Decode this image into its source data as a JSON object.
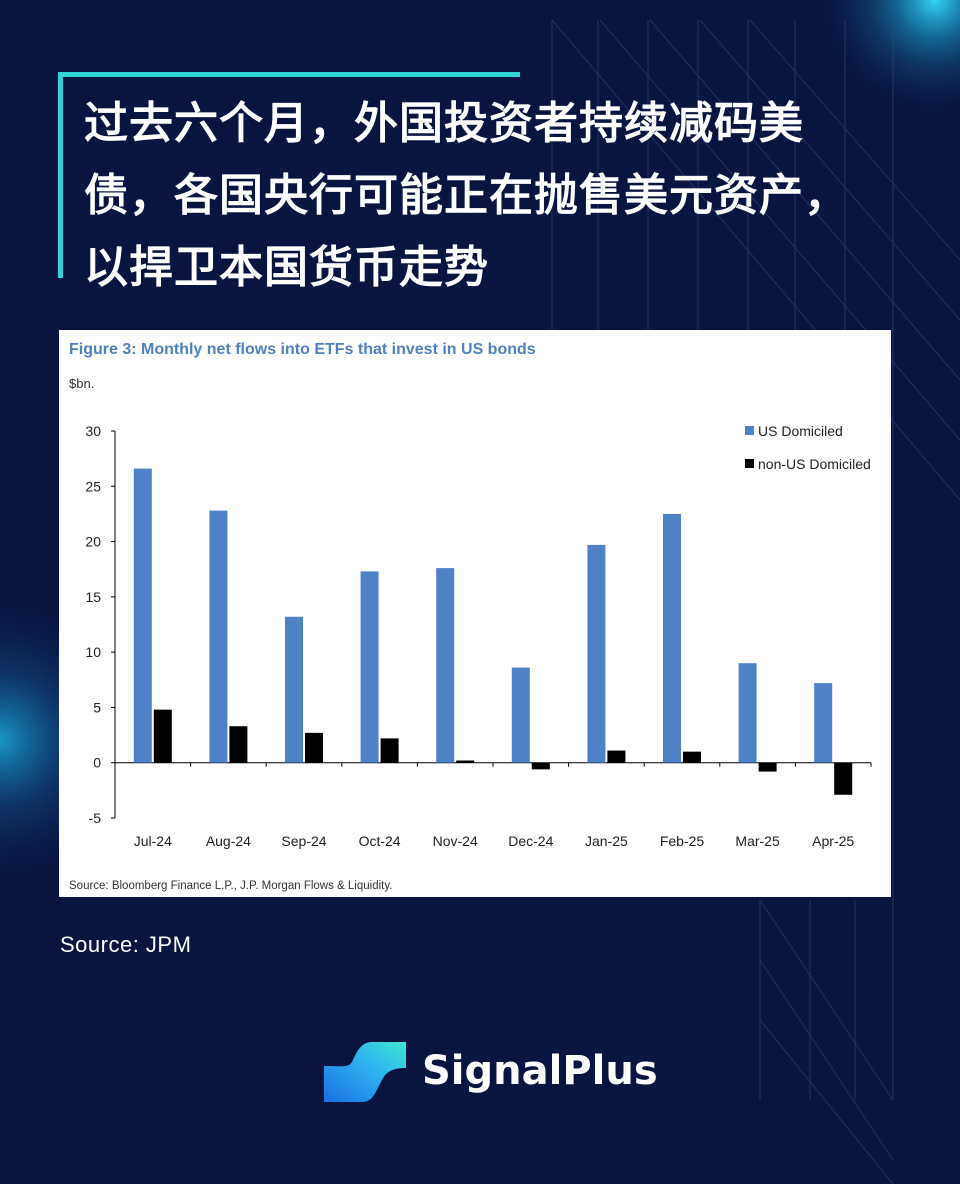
{
  "headline": {
    "lines": [
      "过去六个月，外国投资者持续减码美",
      "债，各国央行可能正在抛售美元资产，",
      "以捍卫本国货币走势"
    ]
  },
  "colors": {
    "background": "#0a1440",
    "accent": "#2fd3d4",
    "us_series": "#4f81c7",
    "non_us_series": "#000000",
    "chart_title": "#4f81bd"
  },
  "chart_data": {
    "type": "bar",
    "title": "Figure 3: Monthly net flows into ETFs that invest in US bonds",
    "ylabel": "$bn.",
    "xlabel": "",
    "ylim": [
      -5,
      30
    ],
    "yticks": [
      30,
      25,
      20,
      15,
      10,
      5,
      0,
      -5
    ],
    "categories": [
      "Jul-24",
      "Aug-24",
      "Sep-24",
      "Oct-24",
      "Nov-24",
      "Dec-24",
      "Jan-25",
      "Feb-25",
      "Mar-25",
      "Apr-25"
    ],
    "series": [
      {
        "name": "US Domiciled",
        "values": [
          26.6,
          22.8,
          13.2,
          17.3,
          17.6,
          8.6,
          19.7,
          22.5,
          9.0,
          7.2
        ]
      },
      {
        "name": "non-US Domiciled",
        "values": [
          4.8,
          3.3,
          2.7,
          2.2,
          0.2,
          -0.6,
          1.1,
          1.0,
          -0.8,
          -2.9
        ]
      }
    ],
    "legend_position": "top-right",
    "grid": false,
    "source": "Source: Bloomberg Finance L.P., J.P. Morgan Flows & Liquidity."
  },
  "footer": {
    "source_note": "Source: JPM",
    "brand_name": "SignalPlus",
    "logo_icon": "signalplus-logo-icon"
  }
}
